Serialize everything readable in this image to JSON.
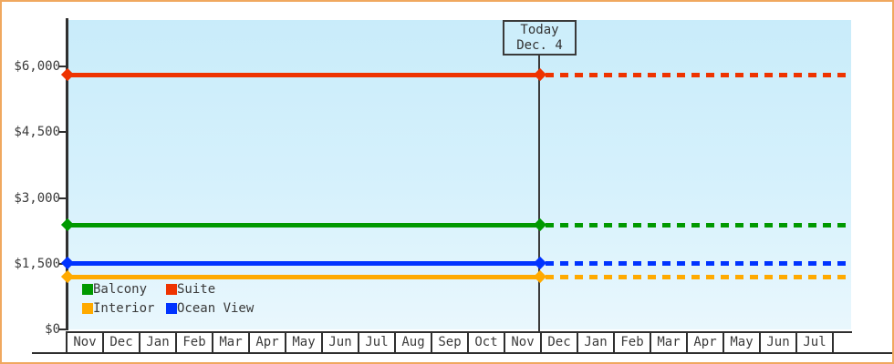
{
  "chart_data": {
    "type": "line",
    "title": "",
    "description": "Price history chart with flat per-category price lines, solid up to today and dotted projection after today",
    "x_categories": [
      "Nov",
      "Dec",
      "Jan",
      "Feb",
      "Mar",
      "Apr",
      "May",
      "Jun",
      "Jul",
      "Aug",
      "Sep",
      "Oct",
      "Nov",
      "Dec",
      "Jan",
      "Feb",
      "Mar",
      "Apr",
      "May",
      "Jun",
      "Jul"
    ],
    "y_axis": {
      "tick_labels": [
        "$6,000",
        "$4,500",
        "$3,000",
        "$1,500",
        "$0"
      ],
      "tick_values": [
        6000,
        4500,
        3000,
        1500,
        0
      ],
      "ylim": [
        0,
        7060
      ]
    },
    "today": {
      "label_line1": "Today",
      "label_line2": "Dec. 4",
      "month_index": 13
    },
    "series": [
      {
        "name": "Balcony",
        "color": "#009900",
        "value": 2370,
        "solid_until": "today",
        "dashed_after": true
      },
      {
        "name": "Suite",
        "color": "#ee3300",
        "value": 5800,
        "solid_until": "today",
        "dashed_after": true
      },
      {
        "name": "Interior",
        "color": "#ffaa00",
        "value": 1200,
        "solid_until": "today",
        "dashed_after": true
      },
      {
        "name": "Ocean View",
        "color": "#0033ff",
        "value": 1500,
        "solid_until": "today",
        "dashed_after": true
      }
    ],
    "legend": {
      "position": "bottom-left",
      "rows": [
        [
          "Balcony",
          "Suite"
        ],
        [
          "Interior",
          "Ocean View"
        ]
      ]
    },
    "grid": "off",
    "colors": {
      "plot_bg_top": "#c9ecfa",
      "plot_bg_bottom": "#e9f7fd",
      "axis": "#2f2f2f",
      "frame_border": "#f0a85f",
      "today_box_bg": "#cdeefb"
    }
  }
}
